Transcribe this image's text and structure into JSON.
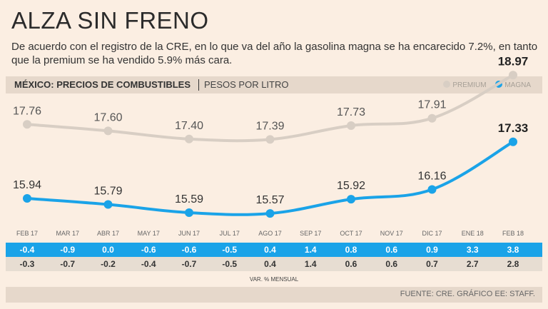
{
  "header": {
    "title": "ALZA SIN FRENO",
    "subtitle": "De acuerdo con el registro de la CRE, en lo que va del año la gasolina magna se ha encarecido 7.2%, en tanto que la premium se ha vendido 5.9% más cara."
  },
  "bar": {
    "title": "MÉXICO: PRECIOS DE COMBUSTIBLES",
    "unit": "PESOS POR LITRO"
  },
  "legend": {
    "premium": "PREMIUM",
    "magna": "MAGNA"
  },
  "colors": {
    "premium": "#d8cec4",
    "magna": "#1aa3e8",
    "background": "#fbeee2"
  },
  "chart_data": {
    "type": "line",
    "title": "MÉXICO: PRECIOS DE COMBUSTIBLES",
    "ylabel": "PESOS POR LITRO",
    "ylim": [
      15.0,
      19.5
    ],
    "categories": [
      "FEB 17",
      "MAR 17",
      "ABR 17",
      "MAY 17",
      "JUN 17",
      "JUL 17",
      "AGO 17",
      "SEP 17",
      "OCT 17",
      "NOV 17",
      "DIC 17",
      "ENE 18",
      "FEB 18"
    ],
    "series": [
      {
        "name": "PREMIUM",
        "points": [
          {
            "index": 0,
            "value": 17.76,
            "label": "17.76"
          },
          {
            "index": 2,
            "value": 17.6,
            "label": "17.60"
          },
          {
            "index": 4,
            "value": 17.4,
            "label": "17.40"
          },
          {
            "index": 6,
            "value": 17.39,
            "label": "17.39"
          },
          {
            "index": 8,
            "value": 17.73,
            "label": "17.73"
          },
          {
            "index": 10,
            "value": 17.91,
            "label": "17.91"
          },
          {
            "index": 12,
            "value": 18.97,
            "label": "18.97"
          }
        ]
      },
      {
        "name": "MAGNA",
        "points": [
          {
            "index": 0,
            "value": 15.94,
            "label": "15.94"
          },
          {
            "index": 2,
            "value": 15.79,
            "label": "15.79"
          },
          {
            "index": 4,
            "value": 15.59,
            "label": "15.59"
          },
          {
            "index": 6,
            "value": 15.57,
            "label": "15.57"
          },
          {
            "index": 8,
            "value": 15.92,
            "label": "15.92"
          },
          {
            "index": 10,
            "value": 16.16,
            "label": "16.16"
          },
          {
            "index": 12,
            "value": 17.33,
            "label": "17.33"
          }
        ]
      }
    ],
    "monthly_variation": {
      "magna": [
        "-0.4",
        "-0.9",
        "0.0",
        "-0.6",
        "-0.6",
        "-0.5",
        "0.4",
        "1.4",
        "0.8",
        "0.6",
        "0.9",
        "3.3",
        "3.8"
      ],
      "premium": [
        "-0.3",
        "-0.7",
        "-0.2",
        "-0.4",
        "-0.7",
        "-0.5",
        "0.4",
        "1.4",
        "0.6",
        "0.6",
        "0.7",
        "2.7",
        "2.8"
      ],
      "label": "VAR. % MENSUAL"
    }
  },
  "footer": {
    "source": "FUENTE: CRE. GRÁFICO EE: STAFF."
  }
}
